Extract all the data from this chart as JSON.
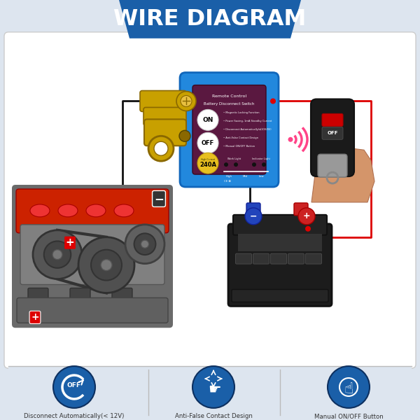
{
  "title": "WIRE DIAGRAM",
  "title_bg_top": "#1a5fa8",
  "title_bg_bottom": "#2272c3",
  "title_text_color": "#ffffff",
  "bg_color": "#dde5ef",
  "card_bg": "#ffffff",
  "card_border": "#cccccc",
  "switch_blue": "#2288dd",
  "switch_purple": "#5a1840",
  "wire_red": "#dd0000",
  "wire_black": "#111111",
  "wire_blue": "#0044cc",
  "gold": "#c8a000",
  "gold_dark": "#8a6800",
  "gold_light": "#e8c040",
  "bottom_icon_color": "#1a5fa8",
  "bottom_bg": "#dde5ef",
  "divider": "#bbbbbb",
  "bottom_labels": [
    "Disconnect Automatically(< 12V)",
    "Anti-False Contact Design",
    "Manual ON/OFF Button"
  ],
  "engine_red": "#cc2200",
  "engine_gray": "#888888",
  "engine_dark": "#444444",
  "battery_dark": "#1a1a1a",
  "battery_neg_color": "#2244cc",
  "battery_pos_color": "#cc2222",
  "remote_dark": "#1a1a1a",
  "remote_silver": "#888888",
  "wifi_pink": "#ff4488",
  "hand_skin": "#d4956a"
}
